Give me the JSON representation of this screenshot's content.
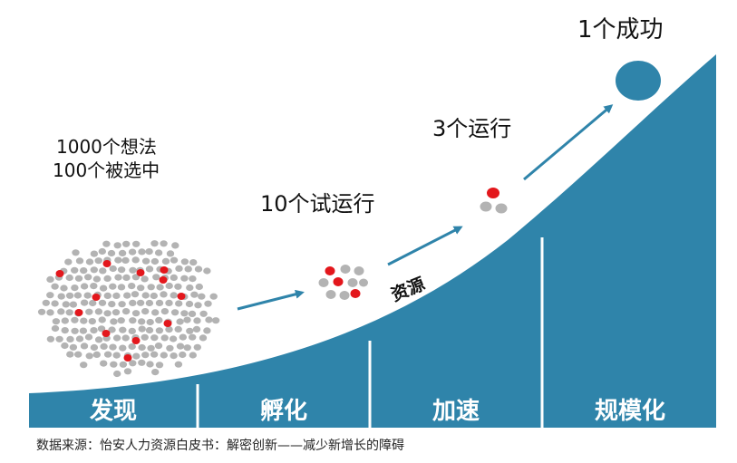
{
  "colors": {
    "curve": "#2f84aa",
    "arrow": "#2f84aa",
    "dot_gray": "#b3b3b3",
    "dot_red": "#e3171c",
    "text": "#111111"
  },
  "annotations": {
    "ideas_line1": "1000个想法",
    "ideas_line2": "100个被选中",
    "trials": "10个试运行",
    "running": "3个运行",
    "success": "1个成功",
    "resource": "资源"
  },
  "stages": [
    {
      "label": "发现"
    },
    {
      "label": "孵化"
    },
    {
      "label": "加速"
    },
    {
      "label": "规模化"
    }
  ],
  "source": "数据来源：怡安人力资源白皮书：解密创新——减少新增长的障碍"
}
